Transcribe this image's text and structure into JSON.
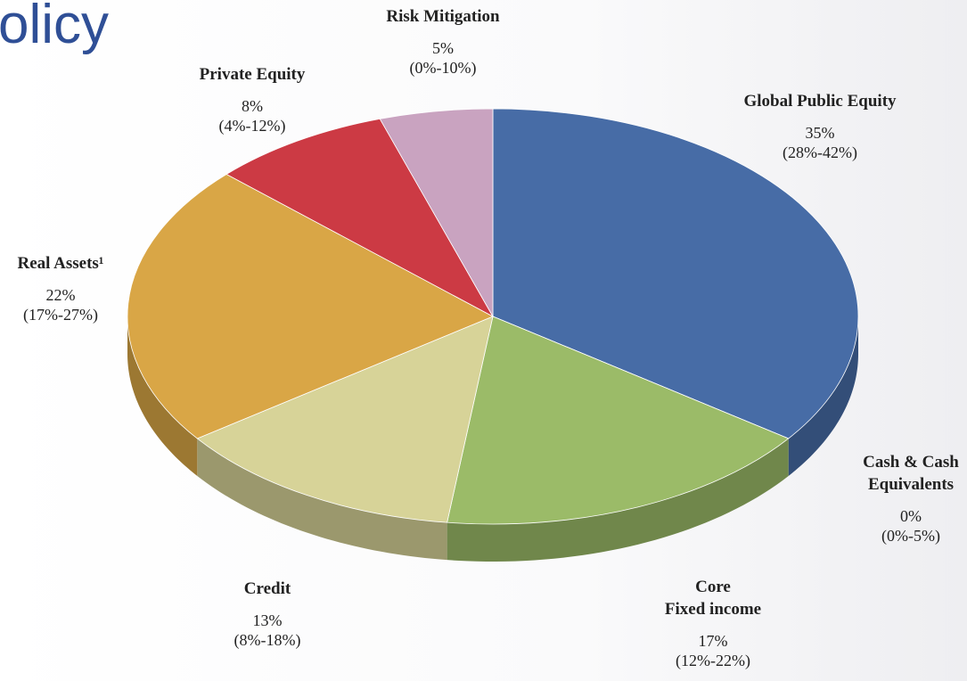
{
  "chart_data": {
    "type": "pie",
    "title": "olicy",
    "categories": [
      "Global Public Equity",
      "Cash & Cash\nEquivalents",
      "Core\nFixed income",
      "Credit",
      "Real Assets¹",
      "Private Equity",
      "Risk Mitigation"
    ],
    "values": [
      35,
      0,
      17,
      13,
      22,
      8,
      5
    ],
    "value_labels": [
      "35%",
      "0%",
      "17%",
      "13%",
      "22%",
      "8%",
      "5%"
    ],
    "range_labels": [
      "(28%-42%)",
      "(0%-5%)",
      "(12%-22%)",
      "(8%-18%)",
      "(17%-27%)",
      "(4%-12%)",
      "(0%-10%)"
    ],
    "colors": [
      "#476ca6",
      "#3d5f96",
      "#9bbb68",
      "#d7d398",
      "#d9a646",
      "#cc3a44",
      "#c9a3c0"
    ]
  }
}
